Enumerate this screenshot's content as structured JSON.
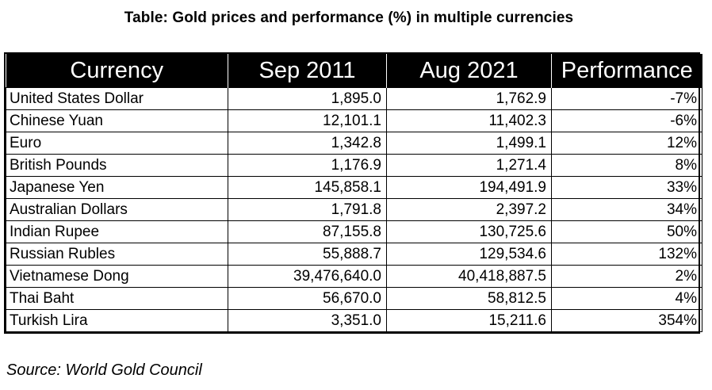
{
  "title": "Table: Gold prices and performance (%) in multiple currencies",
  "source": "Source: World Gold Council",
  "chart_data": {
    "type": "table",
    "title": "Table: Gold prices and performance (%) in multiple currencies",
    "columns": [
      "Currency",
      "Sep 2011",
      "Aug 2021",
      "Performance"
    ],
    "rows": [
      [
        "United States Dollar",
        "1,895.0",
        "1,762.9",
        "-7%"
      ],
      [
        "Chinese Yuan",
        "12,101.1",
        "11,402.3",
        "-6%"
      ],
      [
        "Euro",
        "1,342.8",
        "1,499.1",
        "12%"
      ],
      [
        "British Pounds",
        "1,176.9",
        "1,271.4",
        "8%"
      ],
      [
        "Japanese Yen",
        "145,858.1",
        "194,491.9",
        "33%"
      ],
      [
        "Australian Dollars",
        "1,791.8",
        "2,397.2",
        "34%"
      ],
      [
        "Indian Rupee",
        "87,155.8",
        "130,725.6",
        "50%"
      ],
      [
        "Russian Rubles",
        "55,888.7",
        "129,534.6",
        "132%"
      ],
      [
        "Vietnamese Dong",
        "39,476,640.0",
        "40,418,887.5",
        "2%"
      ],
      [
        "Thai Baht",
        "56,670.0",
        "58,812.5",
        "4%"
      ],
      [
        "Turkish Lira",
        "3,351.0",
        "15,211.6",
        "354%"
      ]
    ]
  }
}
